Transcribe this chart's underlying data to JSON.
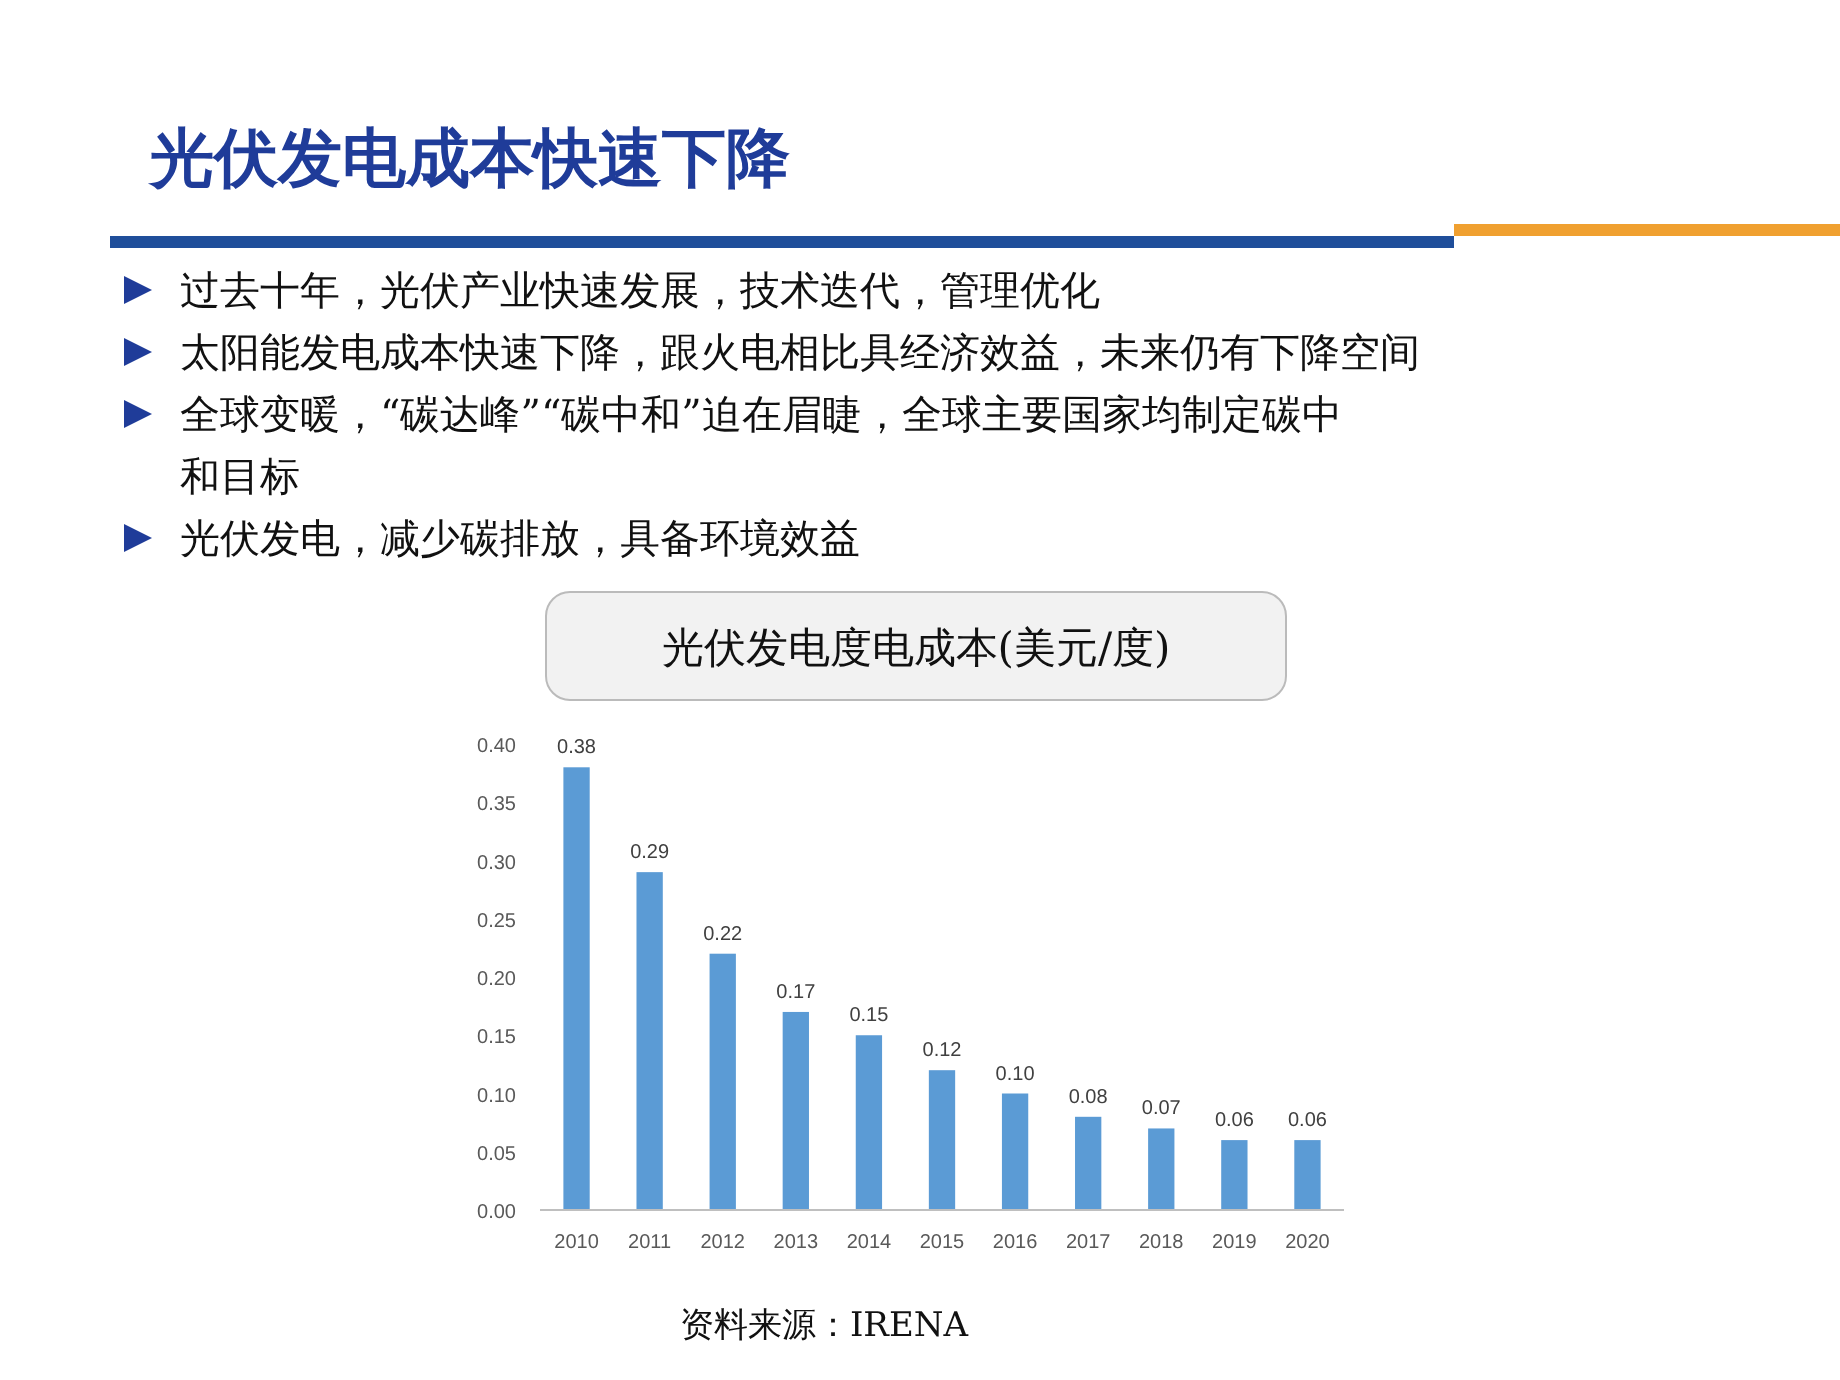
{
  "chart_data": {
    "type": "bar",
    "title": "光伏发电成本快速下降",
    "subtitle": "光伏发电度电成本(美元/度)",
    "annotations": [
      "过去十年，光伏产业快速发展，技术迭代，管理优化",
      "太阳能发电成本快速下降，跟火电相比具经济效益，未来仍有下降空间",
      "全球变暖，“碳达峰”“碳中和”迫在眉睫，全球主要国家均制定碳中和目标",
      "光伏发电，减少碳排放，具备环境效益",
      "资料来源：IRENA"
    ],
    "categories": [
      "2010",
      "2011",
      "2012",
      "2013",
      "2014",
      "2015",
      "2016",
      "2017",
      "2018",
      "2019",
      "2020"
    ],
    "values": [
      0.38,
      0.29,
      0.22,
      0.17,
      0.15,
      0.12,
      0.1,
      0.08,
      0.07,
      0.06,
      0.06
    ],
    "color": "#5b9bd5",
    "value_labels": [
      "0.38",
      "0.29",
      "0.22",
      "0.17",
      "0.15",
      "0.12",
      "0.10",
      "0.08",
      "0.07",
      "0.06",
      "0.06"
    ],
    "ylim": [
      0,
      0.4
    ],
    "yticks": [
      {
        "value": 0,
        "label": "0.00"
      },
      {
        "value": 0.05,
        "label": "0.05"
      },
      {
        "value": 0.1,
        "label": "0.10"
      },
      {
        "value": 0.15,
        "label": "0.15"
      },
      {
        "value": 0.2,
        "label": "0.20"
      },
      {
        "value": 0.25,
        "label": "0.25"
      },
      {
        "value": 0.3,
        "label": "0.30"
      },
      {
        "value": 0.35,
        "label": "0.35"
      },
      {
        "value": 0.4,
        "label": "0.40"
      }
    ]
  }
}
